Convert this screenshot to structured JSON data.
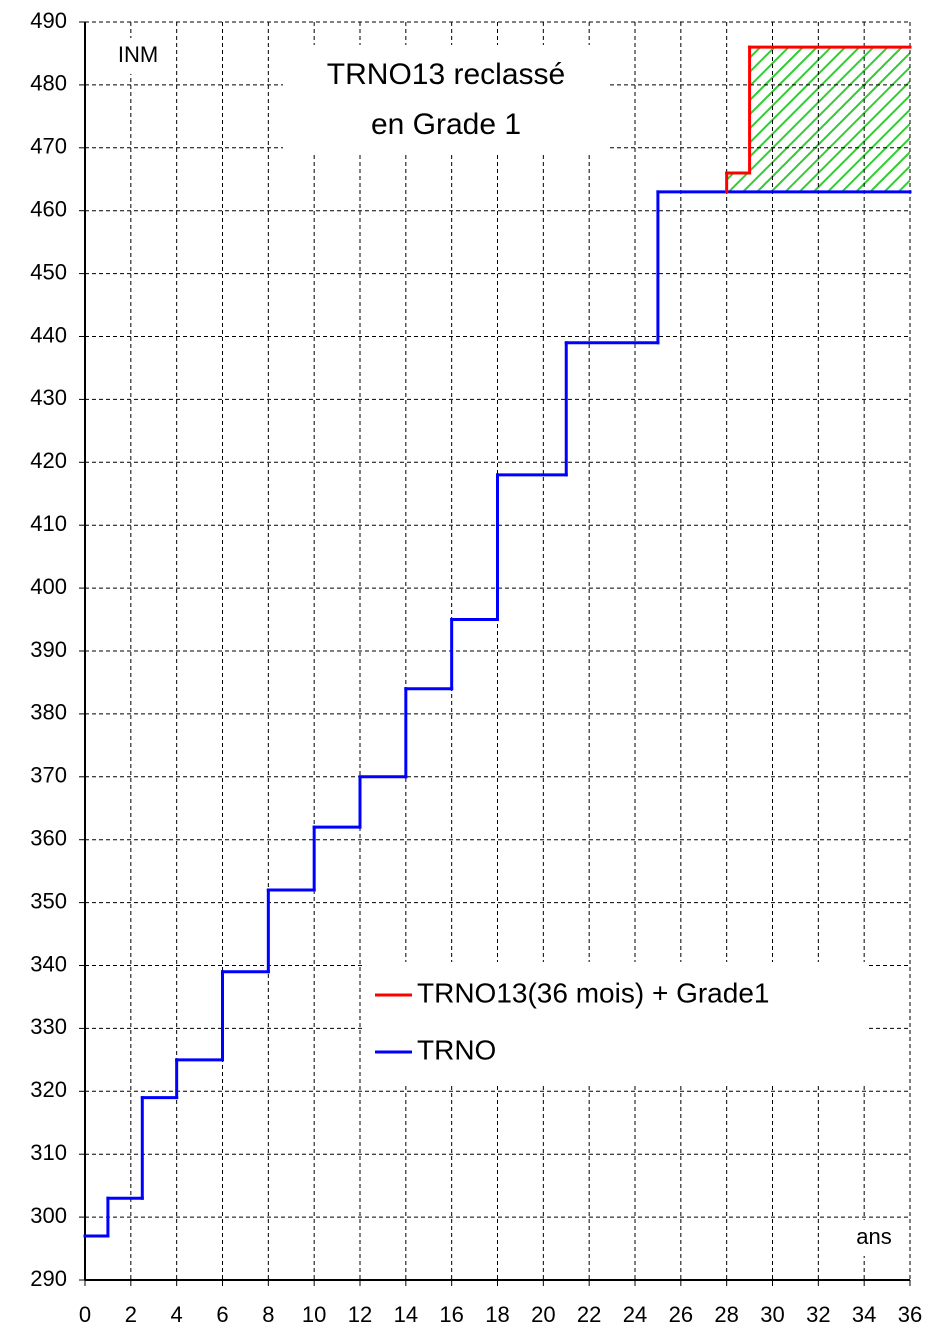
{
  "chart_data": {
    "type": "step",
    "title": [
      "TRNO13 reclassé",
      "en Grade 1"
    ],
    "y_label": "INM",
    "x_label": "ans",
    "xlim": [
      0,
      36
    ],
    "xticks": [
      0,
      2,
      4,
      6,
      8,
      10,
      12,
      14,
      16,
      18,
      20,
      22,
      24,
      26,
      28,
      30,
      32,
      34,
      36
    ],
    "ylim": [
      290,
      490
    ],
    "yticks": [
      290,
      300,
      310,
      320,
      330,
      340,
      350,
      360,
      370,
      380,
      390,
      400,
      410,
      420,
      430,
      440,
      450,
      460,
      470,
      480,
      490
    ],
    "grid": true,
    "series": [
      {
        "name": "TRNO13(36 mois) + Grade1",
        "color": "#ff0000",
        "x": [
          28,
          28,
          29
        ],
        "values": [
          463,
          466,
          486
        ]
      },
      {
        "name": "TRNO",
        "color": "#0000ff",
        "x": [
          0,
          1,
          2.5,
          4,
          6,
          8,
          10,
          12,
          14,
          16,
          18,
          21,
          25
        ],
        "values": [
          297,
          303,
          319,
          325,
          339,
          352,
          362,
          370,
          384,
          395,
          418,
          439,
          463
        ]
      }
    ]
  }
}
